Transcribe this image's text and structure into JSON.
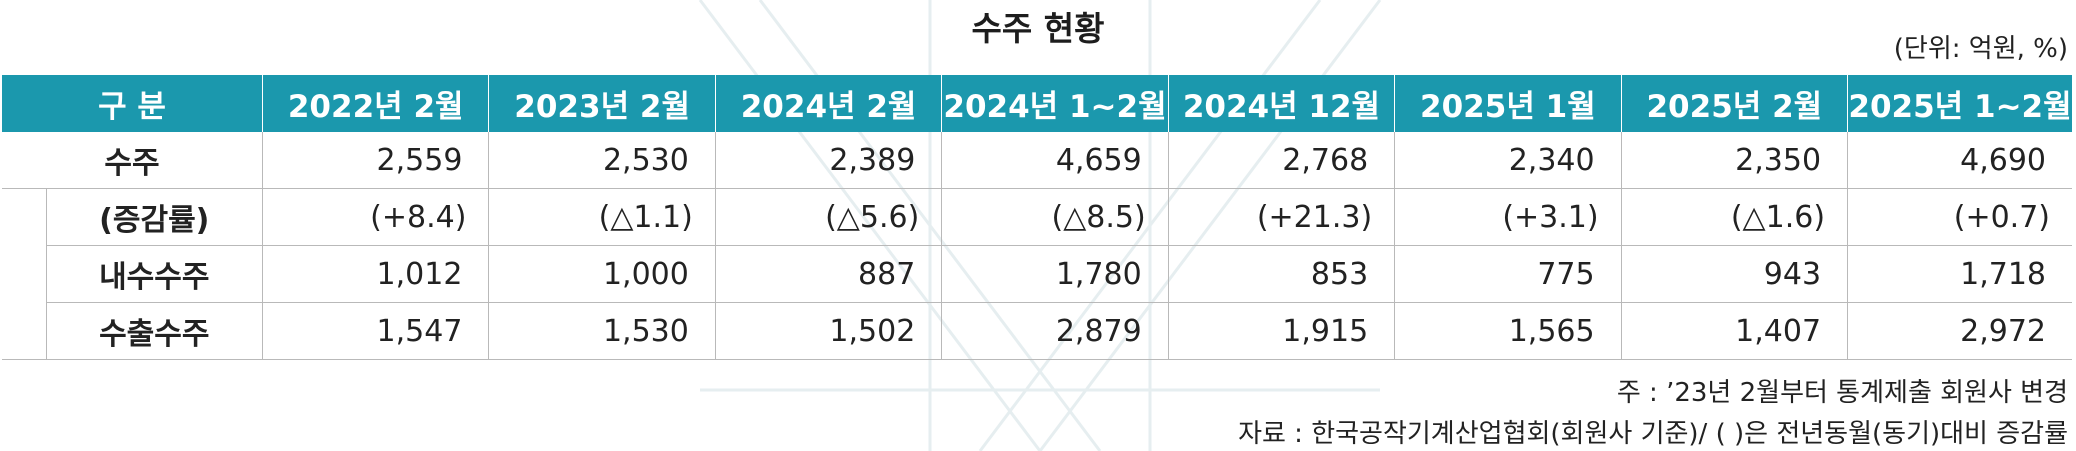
{
  "title": "수주 현황",
  "unit": "(단위: 억원, %)",
  "table": {
    "header": {
      "label": "구 분",
      "columns": [
        "2022년 2월",
        "2023년 2월",
        "2024년 2월",
        "2024년 1~2월",
        "2024년 12월",
        "2025년 1월",
        "2025년 2월",
        "2025년 1~2월"
      ]
    },
    "rows": [
      {
        "label": "수주",
        "values": [
          "2,559",
          "2,530",
          "2,389",
          "4,659",
          "2,768",
          "2,340",
          "2,350",
          "4,690"
        ]
      },
      {
        "label": "(증감률)",
        "values": [
          "(+8.4)",
          "(△1.1)",
          "(△5.6)",
          "(△8.5)",
          "(+21.3)",
          "(+3.1)",
          "(△1.6)",
          "(+0.7)"
        ]
      },
      {
        "label": "내수수주",
        "values": [
          "1,012",
          "1,000",
          "887",
          "1,780",
          "853",
          "775",
          "943",
          "1,718"
        ]
      },
      {
        "label": "수출수주",
        "values": [
          "1,547",
          "1,530",
          "1,502",
          "2,879",
          "1,915",
          "1,565",
          "1,407",
          "2,972"
        ]
      }
    ]
  },
  "notes": {
    "note": "주 : ’23년 2월부터 통계제출 회원사 변경",
    "source": "자료 : 한국공작기계산업협회(회원사 기준)/ (   )은 전년동월(동기)대비 증감률"
  },
  "colors": {
    "header_bg": "#1b98ad",
    "header_text": "#ffffff",
    "grid": "#b9b9b9"
  }
}
